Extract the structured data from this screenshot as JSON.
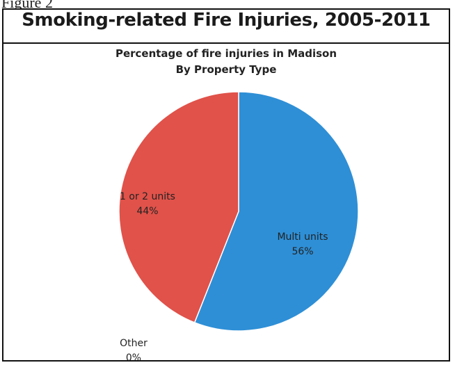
{
  "page_label": "Figure 2",
  "chart_data": {
    "type": "pie",
    "title": "Smoking-related Fire Injuries, 2005-2011",
    "subtitle": [
      "Percentage of fire injuries in Madison",
      "By Property Type"
    ],
    "slices": [
      {
        "label": "Multi units",
        "percent_label": "56%",
        "value": 56,
        "color": "#2e8fd6"
      },
      {
        "label": "Other",
        "percent_label": "0%",
        "value": 0,
        "color": "#9bbb59"
      },
      {
        "label": "1 or 2 units",
        "percent_label": "44%",
        "value": 44,
        "color": "#e0524a"
      }
    ]
  }
}
